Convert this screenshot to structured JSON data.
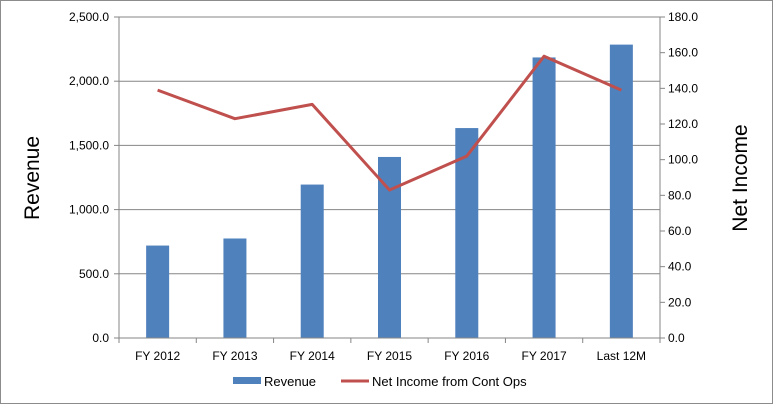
{
  "chart_data": {
    "type": "bar+line",
    "categories": [
      "FY 2012",
      "FY 2013",
      "FY 2014",
      "FY 2015",
      "FY 2016",
      "FY 2017",
      "Last 12M"
    ],
    "series": [
      {
        "name": "Revenue",
        "type": "bar",
        "axis": "left",
        "color": "#4f81bd",
        "values": [
          720,
          775,
          1195,
          1410,
          1635,
          2185,
          2285
        ]
      },
      {
        "name": "Net Income from Cont Ops",
        "type": "line",
        "axis": "right",
        "color": "#c0504d",
        "values": [
          139,
          123,
          131,
          83,
          102,
          158,
          139
        ]
      }
    ],
    "ylabel": "Revenue",
    "y2label": "Net Income",
    "ylim": [
      0,
      2500
    ],
    "y2lim": [
      0,
      180
    ],
    "yticks": [
      "0.0",
      "500.0",
      "1,000.0",
      "1,500.0",
      "2,000.0",
      "2,500.0"
    ],
    "y2ticks": [
      "0.0",
      "20.0",
      "40.0",
      "60.0",
      "80.0",
      "100.0",
      "120.0",
      "140.0",
      "160.0",
      "180.0"
    ],
    "grid": "horizontal",
    "legend": "bottom"
  }
}
